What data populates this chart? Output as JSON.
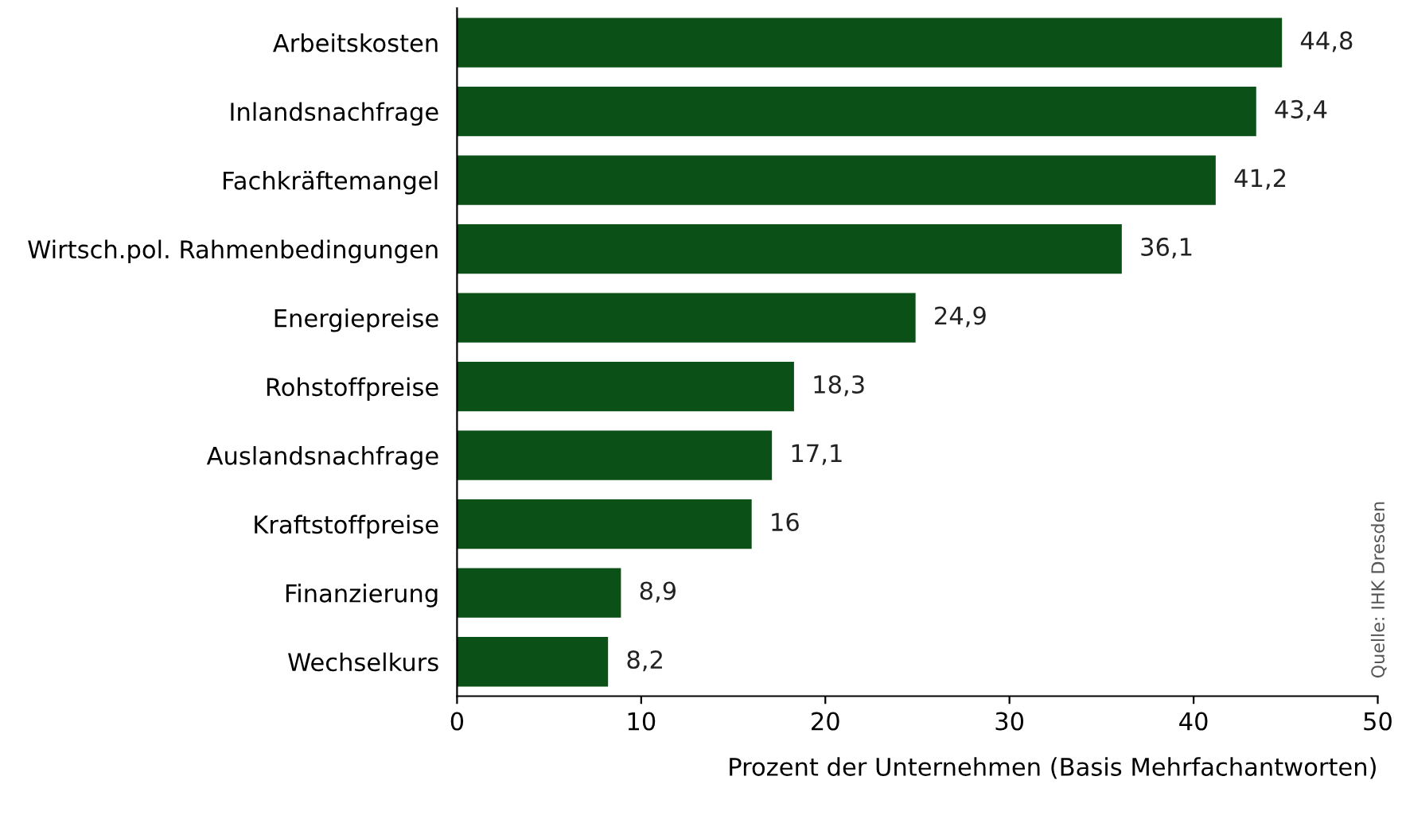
{
  "chart_data": {
    "type": "bar",
    "orientation": "horizontal",
    "xlabel": "Prozent der Unternehmen (Basis Mehrfachantworten)",
    "categories": [
      "Arbeitskosten",
      "Inlandsnachfrage",
      "Fachkräftemangel",
      "Wirtsch.pol. Rahmenbedingungen",
      "Energiepreise",
      "Rohstoffpreise",
      "Auslandsnachfrage",
      "Kraftstoffpreise",
      "Finanzierung",
      "Wechselkurs"
    ],
    "values": [
      44.8,
      43.4,
      41.2,
      36.1,
      24.9,
      18.3,
      17.1,
      16,
      8.9,
      8.2
    ],
    "value_labels": [
      "44,8",
      "43,4",
      "41,2",
      "36,1",
      "24,9",
      "18,3",
      "17,1",
      "16",
      "8,9",
      "8,2"
    ],
    "color": "#0b5016",
    "xlim": [
      0,
      50
    ],
    "xticks": [
      0,
      10,
      20,
      30,
      40,
      50
    ],
    "grid": false,
    "legend": false,
    "annotations": [
      "Quelle: IHK Dresden"
    ]
  }
}
